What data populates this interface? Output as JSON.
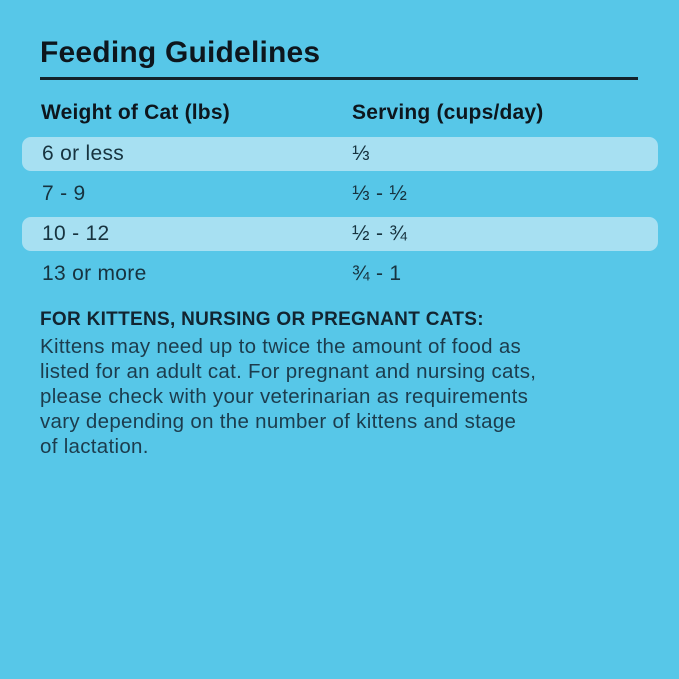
{
  "palette": {
    "background": "#57C7E8",
    "row_highlight": "#A7E0F2",
    "title_color": "#0D161D",
    "text_color": "#17333F",
    "rule_color": "#13232C"
  },
  "title": "Feeding Guidelines",
  "table": {
    "columns": {
      "weight": "Weight of Cat (lbs)",
      "serving": "Serving (cups/day)"
    },
    "rows": [
      {
        "weight": "6 or less",
        "serving": "⅓",
        "highlighted": true
      },
      {
        "weight": "7 - 9",
        "serving": "⅓ - ½",
        "highlighted": false
      },
      {
        "weight": "10 - 12",
        "serving": "½ - ¾",
        "highlighted": true
      },
      {
        "weight": "13 or more",
        "serving": "¾ - 1",
        "highlighted": false
      }
    ]
  },
  "note": {
    "heading": "FOR KITTENS, NURSING OR PREGNANT CATS:",
    "body": "Kittens may need up to twice the amount of food as\nlisted for an adult cat. For pregnant and nursing cats,\nplease check with your veterinarian as requirements\nvary depending on the number of kittens and stage\nof lactation."
  }
}
